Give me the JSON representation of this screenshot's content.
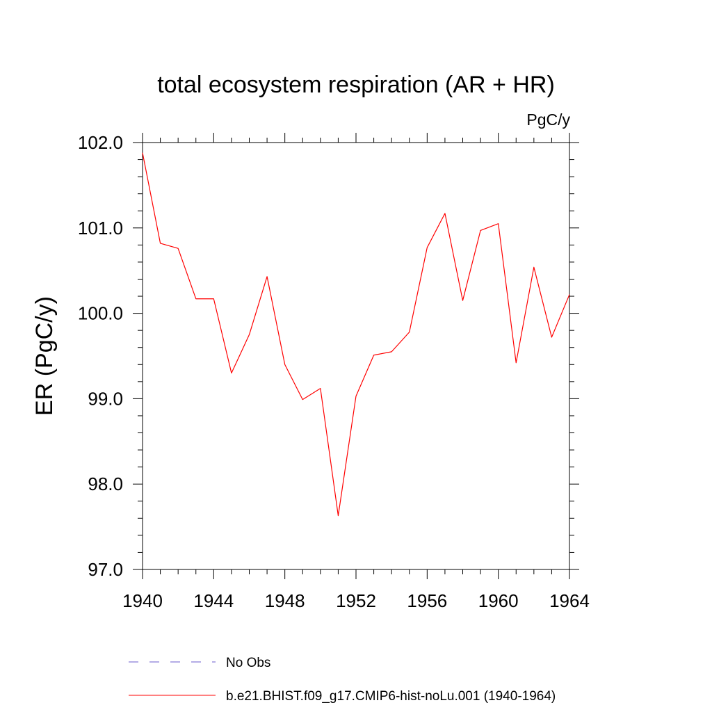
{
  "chart_data": {
    "type": "line",
    "title": "total ecosystem respiration (AR + HR)",
    "units_label": "PgC/y",
    "xlabel": "",
    "ylabel": "ER  (PgC/y)",
    "xlim": [
      1940,
      1964
    ],
    "ylim": [
      97.0,
      102.0
    ],
    "x_ticks": [
      1940,
      1944,
      1948,
      1952,
      1956,
      1960,
      1964
    ],
    "y_ticks": [
      97.0,
      98.0,
      99.0,
      100.0,
      101.0,
      102.0
    ],
    "y_tick_labels": [
      "97.0",
      "98.0",
      "99.0",
      "100.0",
      "101.0",
      "102.0"
    ],
    "grid": false,
    "legend_position": "bottom",
    "series": [
      {
        "name": "No Obs",
        "color": "#6a5acd",
        "style": "dashed",
        "x": [],
        "values": []
      },
      {
        "name": "b.e21.BHIST.f09_g17.CMIP6-hist-noLu.001 (1940-1964)",
        "color": "#ff0000",
        "style": "solid",
        "x": [
          1940,
          1941,
          1942,
          1943,
          1944,
          1945,
          1946,
          1947,
          1948,
          1949,
          1950,
          1951,
          1952,
          1953,
          1954,
          1955,
          1956,
          1957,
          1958,
          1959,
          1960,
          1961,
          1962,
          1963,
          1964
        ],
        "values": [
          101.88,
          100.82,
          100.76,
          100.17,
          100.17,
          99.3,
          99.75,
          100.43,
          99.4,
          98.99,
          99.12,
          97.63,
          99.03,
          99.51,
          99.55,
          99.78,
          100.77,
          101.17,
          100.15,
          100.97,
          101.05,
          99.42,
          100.54,
          99.72,
          100.22
        ]
      }
    ]
  }
}
